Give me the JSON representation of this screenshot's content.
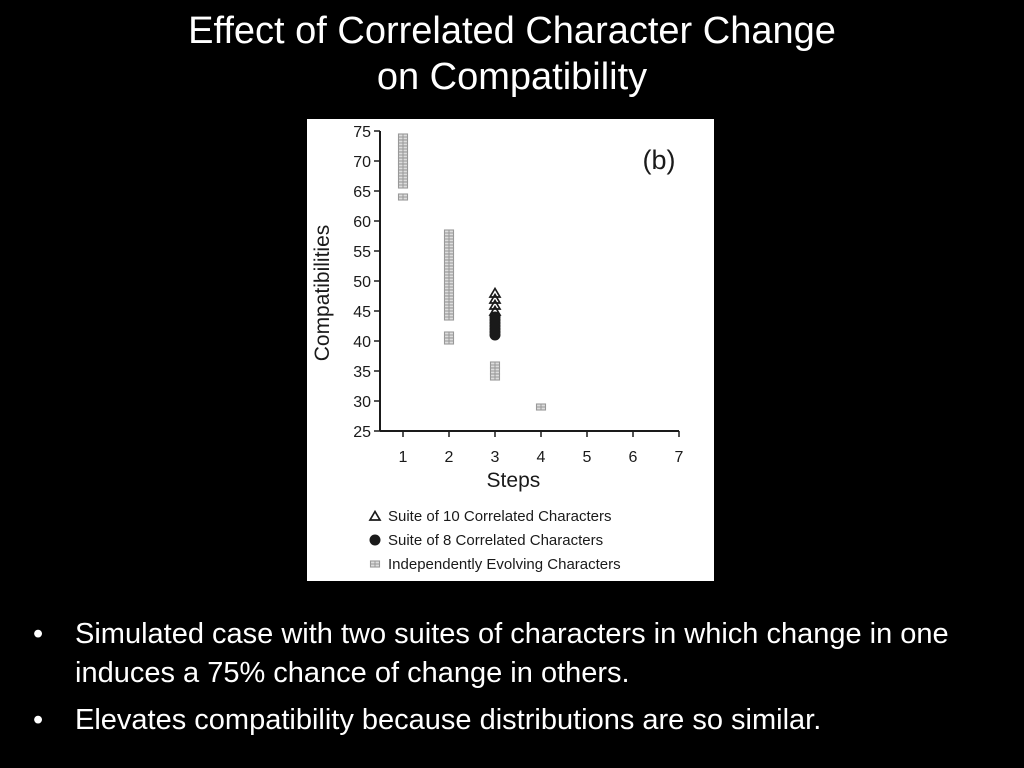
{
  "slide": {
    "title_line1": "Effect of Correlated Character Change",
    "title_line2": "on Compatibility",
    "bullet_symbol": "•",
    "bullets": [
      "Simulated case with two suites of characters in which change in one induces a 75% chance of change in others.",
      "Elevates compatibility because distributions are so similar."
    ]
  },
  "colors": {
    "slide_background": "#000000",
    "slide_text": "#ffffff",
    "figure_background": "#ffffff",
    "figure_ink": "#1a1a1a",
    "independent_marker": "#999999"
  },
  "chart_data": {
    "type": "scatter",
    "panel_label": "(b)",
    "xlabel": "Steps",
    "ylabel": "Compatibilities",
    "xlim": [
      0.5,
      7
    ],
    "ylim": [
      25,
      75
    ],
    "x_ticks": [
      1,
      2,
      3,
      4,
      5,
      6,
      7
    ],
    "y_ticks": [
      25,
      30,
      35,
      40,
      45,
      50,
      55,
      60,
      65,
      70,
      75
    ],
    "grid": false,
    "legend_position": "bottom",
    "series": [
      {
        "name": "Suite of 10 Correlated Characters",
        "marker": "triangle-open",
        "points": [
          [
            3,
            48
          ],
          [
            3,
            47
          ],
          [
            3,
            46
          ],
          [
            3,
            45
          ]
        ]
      },
      {
        "name": "Suite of 8 Correlated Characters",
        "marker": "circle-filled",
        "points": [
          [
            3,
            44
          ],
          [
            3,
            43.5
          ],
          [
            3,
            43
          ],
          [
            3,
            42.5
          ],
          [
            3,
            42
          ],
          [
            3,
            41.5
          ],
          [
            3,
            41
          ]
        ]
      },
      {
        "name": "Independently Evolving Characters",
        "marker": "square-hatched",
        "points": [
          [
            1,
            74
          ],
          [
            1,
            73
          ],
          [
            1,
            72
          ],
          [
            1,
            71
          ],
          [
            1,
            70
          ],
          [
            1,
            69
          ],
          [
            1,
            68
          ],
          [
            1,
            67
          ],
          [
            1,
            66
          ],
          [
            1,
            64
          ],
          [
            2,
            58
          ],
          [
            2,
            57
          ],
          [
            2,
            56
          ],
          [
            2,
            55
          ],
          [
            2,
            54
          ],
          [
            2,
            53
          ],
          [
            2,
            52
          ],
          [
            2,
            51
          ],
          [
            2,
            50
          ],
          [
            2,
            49
          ],
          [
            2,
            48
          ],
          [
            2,
            47
          ],
          [
            2,
            46
          ],
          [
            2,
            45
          ],
          [
            2,
            44
          ],
          [
            2,
            41
          ],
          [
            2,
            40
          ],
          [
            3,
            36
          ],
          [
            3,
            35
          ],
          [
            3,
            34
          ],
          [
            4,
            29
          ]
        ]
      }
    ]
  }
}
